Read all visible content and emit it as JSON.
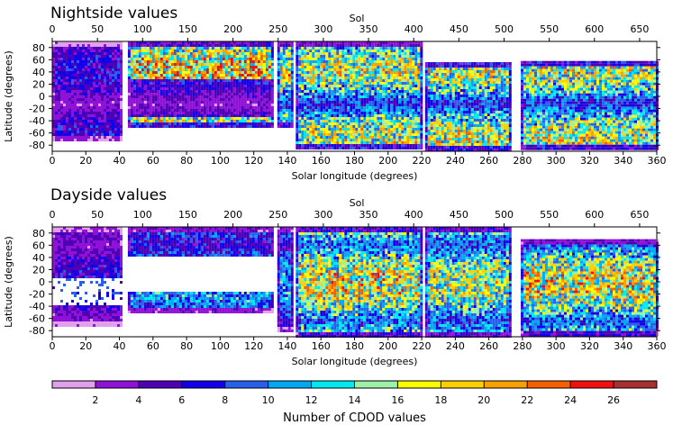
{
  "chart_data": {
    "type": "heatmap",
    "panels": [
      {
        "title": "Nightside values",
        "x_top_label": "Sol",
        "x_top_ticks": [
          "0",
          "50",
          "100",
          "150",
          "200",
          "250",
          "300",
          "350",
          "400",
          "450",
          "500",
          "550",
          "600",
          "650"
        ],
        "x_top_values": [
          0,
          50,
          100,
          150,
          200,
          250,
          300,
          350,
          400,
          450,
          500,
          550,
          600,
          650
        ],
        "xlabel": "Solar longitude (degrees)",
        "x_ticks": [
          "0",
          "20",
          "40",
          "60",
          "80",
          "100",
          "120",
          "140",
          "160",
          "180",
          "200",
          "220",
          "240",
          "260",
          "280",
          "300",
          "320",
          "340",
          "360"
        ],
        "x_values": [
          0,
          20,
          40,
          60,
          80,
          100,
          120,
          140,
          160,
          180,
          200,
          220,
          240,
          260,
          280,
          300,
          320,
          340,
          360
        ],
        "xlim": [
          0,
          360
        ],
        "ylabel": "Latitude (degrees)",
        "y_ticks": [
          "80",
          "60",
          "40",
          "20",
          "0",
          "-20",
          "-40",
          "-60",
          "-80"
        ],
        "y_values": [
          80,
          60,
          40,
          20,
          0,
          -20,
          -40,
          -60,
          -80
        ],
        "ylim": [
          -90,
          90
        ],
        "data_segments": [
          {
            "ls_start": 0,
            "ls_end": 41,
            "lat_min": -72,
            "lat_max": 90,
            "peak_count": 8
          },
          {
            "ls_start": 45,
            "ls_end": 131,
            "lat_min": -48,
            "lat_max": 90,
            "peak_count": 24
          },
          {
            "ls_start": 134,
            "ls_end": 143,
            "lat_min": -48,
            "lat_max": 90,
            "peak_count": 22
          },
          {
            "ls_start": 145,
            "ls_end": 220,
            "lat_min": -85,
            "lat_max": 90,
            "peak_count": 20
          },
          {
            "ls_start": 222,
            "ls_end": 272,
            "lat_min": -88,
            "lat_max": 56,
            "peak_count": 20
          },
          {
            "ls_start": 279,
            "ls_end": 360,
            "lat_min": -88,
            "lat_max": 58,
            "peak_count": 20
          }
        ]
      },
      {
        "title": "Dayside values",
        "x_top_label": "Sol",
        "x_top_ticks": [
          "0",
          "50",
          "100",
          "150",
          "200",
          "250",
          "300",
          "350",
          "400",
          "450",
          "500",
          "550",
          "600",
          "650"
        ],
        "x_top_values": [
          0,
          50,
          100,
          150,
          200,
          250,
          300,
          350,
          400,
          450,
          500,
          550,
          600,
          650
        ],
        "xlabel": "Solar longitude (degrees)",
        "x_ticks": [
          "0",
          "20",
          "40",
          "60",
          "80",
          "100",
          "120",
          "140",
          "160",
          "180",
          "200",
          "220",
          "240",
          "260",
          "280",
          "300",
          "320",
          "340",
          "360"
        ],
        "x_values": [
          0,
          20,
          40,
          60,
          80,
          100,
          120,
          140,
          160,
          180,
          200,
          220,
          240,
          260,
          280,
          300,
          320,
          340,
          360
        ],
        "xlim": [
          0,
          360
        ],
        "ylabel": "Latitude (degrees)",
        "y_ticks": [
          "80",
          "60",
          "40",
          "20",
          "0",
          "-20",
          "-40",
          "-60",
          "-80"
        ],
        "y_values": [
          80,
          60,
          40,
          20,
          0,
          -20,
          -40,
          -60,
          -80
        ],
        "ylim": [
          -90,
          90
        ],
        "data_segments": [
          {
            "ls_start": 0,
            "ls_end": 41,
            "lat_min": -72,
            "lat_max": 90,
            "peak_count": 8
          },
          {
            "ls_start": 45,
            "ls_end": 131,
            "lat_min": -48,
            "lat_max": 90,
            "peak_count": 14
          },
          {
            "ls_start": 134,
            "ls_end": 143,
            "lat_min": -80,
            "lat_max": 90,
            "peak_count": 14
          },
          {
            "ls_start": 145,
            "ls_end": 220,
            "lat_min": -88,
            "lat_max": 90,
            "peak_count": 22
          },
          {
            "ls_start": 222,
            "ls_end": 272,
            "lat_min": -88,
            "lat_max": 90,
            "peak_count": 20
          },
          {
            "ls_start": 279,
            "ls_end": 360,
            "lat_min": -88,
            "lat_max": 70,
            "peak_count": 22
          }
        ]
      }
    ],
    "colorbar": {
      "label": "Number of CDOD values",
      "tick_labels": [
        "2",
        "4",
        "6",
        "8",
        "10",
        "12",
        "14",
        "16",
        "18",
        "20",
        "22",
        "24",
        "26"
      ],
      "tick_values": [
        2,
        4,
        6,
        8,
        10,
        12,
        14,
        16,
        18,
        20,
        22,
        24,
        26
      ],
      "range": [
        0,
        28
      ],
      "colors": [
        "#e0a0ee",
        "#9012d8",
        "#5000b4",
        "#1400e8",
        "#2860ec",
        "#00a8f4",
        "#00e8f0",
        "#9cf0a8",
        "#fcfc00",
        "#fcd000",
        "#f8a000",
        "#f46000",
        "#f01010",
        "#a83030"
      ]
    }
  }
}
